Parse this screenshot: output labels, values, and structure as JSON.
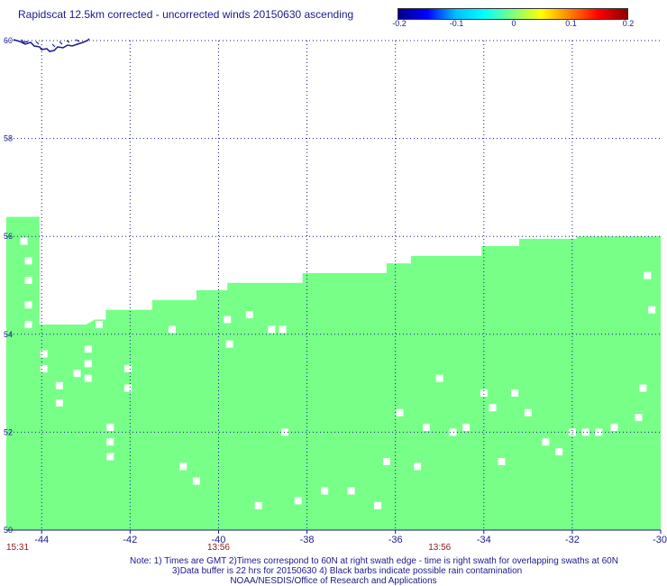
{
  "header": {
    "title": "Rapidscat 12.5km corrected - uncorrected winds 20150630 ascending"
  },
  "colorbar": {
    "labels": [
      "-0.2",
      "-0.1",
      "0",
      "0.1",
      "0.2"
    ],
    "min": -0.2,
    "max": 0.2,
    "colors": [
      "#00008b",
      "#0000ff",
      "#00bfff",
      "#00ffff",
      "#7fff7f",
      "#ffff00",
      "#ff7f00",
      "#ff0000",
      "#8b0000"
    ]
  },
  "chart_data": {
    "type": "heatmap",
    "xlim": [
      -44.8,
      -30
    ],
    "ylim": [
      50,
      60
    ],
    "x_ticks": [
      -44,
      -42,
      -40,
      -38,
      -36,
      -34,
      -32,
      -30
    ],
    "x_tick_labels": [
      "-44",
      "-42",
      "-40",
      "-38",
      "-36",
      "-34",
      "-32",
      "-30"
    ],
    "y_ticks": [
      50,
      52,
      54,
      56,
      58,
      60
    ],
    "y_tick_labels": [
      "50",
      "52",
      "54",
      "56",
      "58",
      "60"
    ],
    "grid": true,
    "swath_fill_color": "#77ff88",
    "swath_value": 0,
    "swath_top_edge": [
      [
        -44.8,
        56.4
      ],
      [
        -44.05,
        56.4
      ],
      [
        -44.05,
        54.2
      ],
      [
        -43.0,
        54.2
      ],
      [
        -43.0,
        54.2
      ],
      [
        -42.8,
        54.3
      ],
      [
        -42.55,
        54.3
      ],
      [
        -42.55,
        54.5
      ],
      [
        -41.5,
        54.5
      ],
      [
        -41.5,
        54.7
      ],
      [
        -40.5,
        54.7
      ],
      [
        -40.5,
        54.9
      ],
      [
        -39.8,
        54.9
      ],
      [
        -39.8,
        55.05
      ],
      [
        -38.1,
        55.05
      ],
      [
        -38.1,
        55.25
      ],
      [
        -36.2,
        55.25
      ],
      [
        -36.2,
        55.45
      ],
      [
        -35.65,
        55.45
      ],
      [
        -35.65,
        55.6
      ],
      [
        -34.05,
        55.6
      ],
      [
        -34.05,
        55.8
      ],
      [
        -33.2,
        55.8
      ],
      [
        -33.2,
        55.95
      ],
      [
        -31.9,
        55.95
      ],
      [
        -31.9,
        56.0
      ],
      [
        -30,
        56.0
      ]
    ],
    "missing_cells": [
      [
        -44.4,
        55.9
      ],
      [
        -44.3,
        55.5
      ],
      [
        -44.3,
        55.1
      ],
      [
        -44.3,
        54.6
      ],
      [
        -44.3,
        54.2
      ],
      [
        -43.95,
        53.6
      ],
      [
        -43.95,
        53.3
      ],
      [
        -43.6,
        52.95
      ],
      [
        -43.6,
        52.6
      ],
      [
        -43.2,
        53.2
      ],
      [
        -42.95,
        53.7
      ],
      [
        -42.95,
        53.4
      ],
      [
        -42.95,
        53.1
      ],
      [
        -42.7,
        54.2
      ],
      [
        -42.45,
        52.1
      ],
      [
        -42.45,
        51.8
      ],
      [
        -42.45,
        51.5
      ],
      [
        -42.05,
        53.3
      ],
      [
        -42.05,
        52.9
      ],
      [
        -41.05,
        54.1
      ],
      [
        -40.8,
        51.3
      ],
      [
        -40.5,
        51.0
      ],
      [
        -39.8,
        54.3
      ],
      [
        -39.75,
        53.8
      ],
      [
        -39.3,
        54.4
      ],
      [
        -39.1,
        50.5
      ],
      [
        -38.8,
        54.1
      ],
      [
        -38.55,
        54.1
      ],
      [
        -38.5,
        52.0
      ],
      [
        -38.2,
        50.6
      ],
      [
        -37.6,
        50.8
      ],
      [
        -37.0,
        50.8
      ],
      [
        -36.4,
        50.5
      ],
      [
        -36.2,
        51.4
      ],
      [
        -35.9,
        52.4
      ],
      [
        -35.5,
        51.3
      ],
      [
        -35.3,
        52.1
      ],
      [
        -35.0,
        53.1
      ],
      [
        -34.7,
        52.0
      ],
      [
        -34.4,
        52.1
      ],
      [
        -34.0,
        52.8
      ],
      [
        -33.8,
        52.5
      ],
      [
        -33.6,
        51.4
      ],
      [
        -33.3,
        52.8
      ],
      [
        -33.0,
        52.4
      ],
      [
        -32.6,
        51.8
      ],
      [
        -32.3,
        51.6
      ],
      [
        -32.0,
        52.0
      ],
      [
        -31.7,
        52.0
      ],
      [
        -31.4,
        52.0
      ],
      [
        -31.05,
        52.1
      ],
      [
        -30.5,
        52.3
      ],
      [
        -30.4,
        52.9
      ],
      [
        -30.2,
        54.5
      ],
      [
        -30.3,
        55.2
      ]
    ],
    "land_label": "coastline"
  },
  "axes": {
    "lat_labels": [
      "60",
      "58",
      "56",
      "54",
      "52",
      "50"
    ],
    "lon_labels": [
      "-44",
      "-42",
      "-40",
      "-38",
      "-36",
      "-34",
      "-32",
      "-30"
    ],
    "time_labels": [
      {
        "text": "15:31",
        "lon": -44.8
      },
      {
        "text": "13:56",
        "lon": -40.0
      },
      {
        "text": "13:56",
        "lon": -35.0
      }
    ]
  },
  "footer": {
    "note1": "Note: 1) Times are GMT 2)Times correspond to 60N at right swath edge - time is right swath for overlapping swaths at 60N",
    "note2": "3)Data buffer is 22 hrs for 20150630 4) Black barbs indicate possible rain contamination",
    "note3": "NOAA/NESDIS/Office of Research and Applications"
  }
}
